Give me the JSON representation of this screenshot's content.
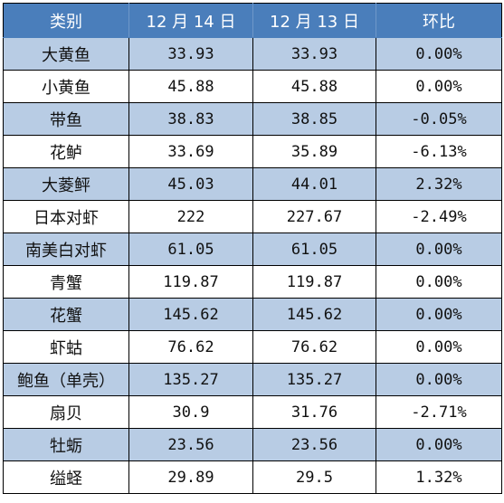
{
  "table": {
    "headers": [
      "类别",
      "12 月 14 日",
      "12 月 13 日",
      "环比"
    ],
    "rows": [
      [
        "大黄鱼",
        "33.93",
        "33.93",
        "0.00%"
      ],
      [
        "小黄鱼",
        "45.88",
        "45.88",
        "0.00%"
      ],
      [
        "带鱼",
        "38.83",
        "38.85",
        "-0.05%"
      ],
      [
        "花鲈",
        "33.69",
        "35.89",
        "-6.13%"
      ],
      [
        "大菱鲆",
        "45.03",
        "44.01",
        "2.32%"
      ],
      [
        "日本对虾",
        "222",
        "227.67",
        "-2.49%"
      ],
      [
        "南美白对虾",
        "61.05",
        "61.05",
        "0.00%"
      ],
      [
        "青蟹",
        "119.87",
        "119.87",
        "0.00%"
      ],
      [
        "花蟹",
        "145.62",
        "145.62",
        "0.00%"
      ],
      [
        "虾蛄",
        "76.62",
        "76.62",
        "0.00%"
      ],
      [
        "鲍鱼（单壳）",
        "135.27",
        "135.27",
        "0.00%"
      ],
      [
        "扇贝",
        "30.9",
        "31.76",
        "-2.71%"
      ],
      [
        "牡蛎",
        "23.56",
        "23.56",
        "0.00%"
      ],
      [
        "缢蛏",
        "29.89",
        "29.5",
        "1.32%"
      ]
    ]
  },
  "colors": {
    "header_bg": "#4a7ebb",
    "header_text": "#ffffff",
    "band_bg": "#b8cce4",
    "plain_bg": "#ffffff"
  }
}
